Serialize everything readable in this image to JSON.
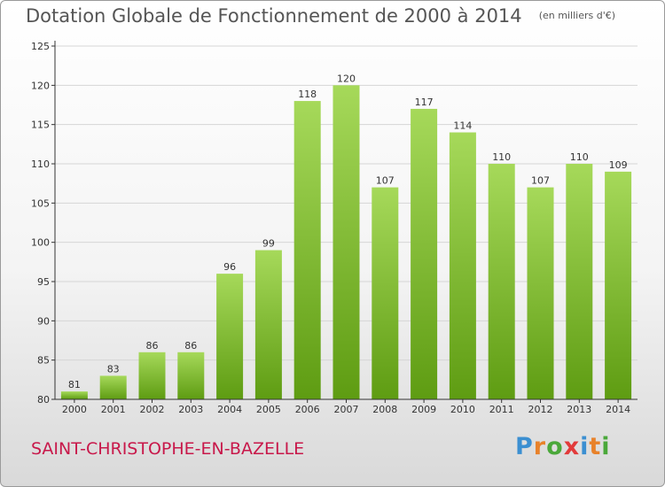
{
  "title": "Dotation Globale de Fonctionnement de 2000 à 2014",
  "unit_label": "(en milliers d'€)",
  "commune": "SAINT-CHRISTOPHE-EN-BAZELLE",
  "logo": {
    "letters": [
      "P",
      "r",
      "o",
      "x",
      "i",
      "t",
      "i"
    ],
    "colors": [
      "#3b8fd1",
      "#e8822a",
      "#4aa83a",
      "#e23a3a",
      "#3b8fd1",
      "#e8822a",
      "#4aa83a"
    ]
  },
  "colors": {
    "bar_top": "#a6d95a",
    "bar_bottom": "#5e9c12",
    "axis": "#333333",
    "grid": "#d6d6d6",
    "text": "#333333"
  },
  "chart_data": {
    "type": "bar",
    "title": "Dotation Globale de Fonctionnement de 2000 à 2014",
    "categories": [
      "2000",
      "2001",
      "2002",
      "2003",
      "2004",
      "2005",
      "2006",
      "2007",
      "2008",
      "2009",
      "2010",
      "2011",
      "2012",
      "2013",
      "2014"
    ],
    "values": [
      81,
      83,
      86,
      86,
      96,
      99,
      118,
      120,
      107,
      117,
      114,
      110,
      107,
      110,
      109
    ],
    "ylim": [
      80,
      125
    ],
    "yticks": [
      80,
      85,
      90,
      95,
      100,
      105,
      110,
      115,
      120,
      125
    ],
    "xlabel": "",
    "ylabel": "",
    "grid": true
  }
}
